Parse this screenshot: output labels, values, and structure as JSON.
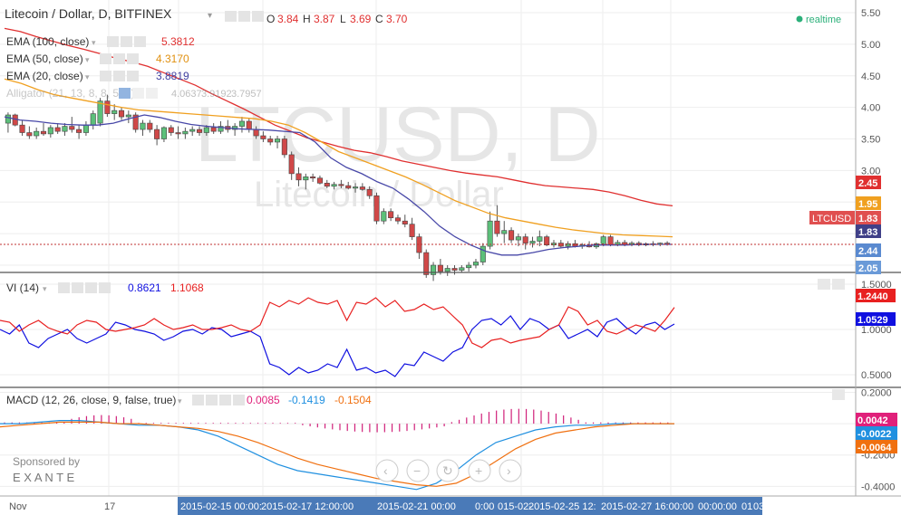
{
  "header": {
    "symbol_title": "Litecoin / Dollar, D, BITFINEX",
    "ohlc": {
      "o_label": "O",
      "o": "3.84",
      "h_label": "H",
      "h": "3.87",
      "l_label": "L",
      "l": "3.69",
      "c_label": "C",
      "c": "3.70"
    },
    "realtime_label": "realtime"
  },
  "watermark": {
    "line1": "LTCUSD, D",
    "line2": "Litecoin / Dollar"
  },
  "indicators": [
    {
      "label": "EMA (100, close)",
      "value": "5.3812",
      "color": "#e03030"
    },
    {
      "label": "EMA (50, close)",
      "value": "4.3170",
      "color": "#f0a020"
    },
    {
      "label": "EMA (20, close)",
      "value": "3.8819",
      "color": "#4040a0"
    },
    {
      "label": "Alligator (21, 13, 8, 8, 5, 3)",
      "values": [
        "4.0637",
        "3.9192",
        "3.7957"
      ],
      "color": "#9aa6b8"
    }
  ],
  "price_axis": {
    "ticks": [
      "5.50",
      "5.00",
      "4.50",
      "4.00",
      "3.50",
      "3.00",
      "2.50",
      "2.00",
      "1.50"
    ],
    "tags": [
      {
        "text": "2.45",
        "color": "#e03030"
      },
      {
        "text": "1.95",
        "color": "#f0a020"
      },
      {
        "text": "1.83",
        "color": "#e05050"
      },
      {
        "text": "1.83",
        "color": "#404088"
      },
      {
        "text": "2.44",
        "color": "#5a8ad0"
      },
      {
        "text": "2.05",
        "color": "#6a9ad8"
      }
    ],
    "symbol_tag": "LTCUSD"
  },
  "vi_panel": {
    "label": "VI (14)",
    "plus": "0.8621",
    "minus": "1.1068",
    "ticks": [
      "1.5000",
      "1.0000",
      "0.5000"
    ],
    "tags": [
      {
        "text": "1.2440",
        "color": "#e82020"
      },
      {
        "text": "1.0529",
        "color": "#1010e0"
      }
    ]
  },
  "macd_panel": {
    "label": "MACD (12, 26, close, 9, false, true)",
    "hist": "0.0085",
    "macd": "-0.1419",
    "signal": "-0.1504",
    "ticks": [
      "0.2000",
      "0.0000",
      "-0.2000",
      "-0.4000"
    ],
    "tags": [
      {
        "text": "0.0042",
        "color": "#e0207a"
      },
      {
        "text": "-0.0022",
        "color": "#2090e0"
      },
      {
        "text": "-0.0064",
        "color": "#f07010"
      }
    ]
  },
  "time_axis": {
    "labels": [
      "Nov",
      "17",
      "2015-02-15 00:00:",
      "2015-02-17 12:00:00",
      "2015-02-21 00:00",
      "0:00",
      "015-02-",
      "2015-02-25 12:",
      "2015-02-27 16:00:00",
      "00:00:00",
      "01",
      "03"
    ],
    "highlight_color": "#4a7ab8"
  },
  "sponsor": {
    "line1": "Sponsored by",
    "line2": "E X A N T E"
  },
  "nav_buttons": [
    "‹",
    "−",
    "↻",
    "+",
    "›"
  ],
  "chart_data": [
    {
      "type": "candlestick",
      "title": "Litecoin / Dollar, D, BITFINEX",
      "ylim": [
        1.5,
        5.5
      ],
      "candles": [
        [
          3.75,
          3.92,
          3.6,
          3.88
        ],
        [
          3.88,
          3.9,
          3.7,
          3.72
        ],
        [
          3.72,
          3.8,
          3.55,
          3.6
        ],
        [
          3.6,
          3.7,
          3.5,
          3.55
        ],
        [
          3.55,
          3.68,
          3.5,
          3.62
        ],
        [
          3.62,
          3.75,
          3.55,
          3.58
        ],
        [
          3.58,
          3.72,
          3.52,
          3.68
        ],
        [
          3.68,
          3.75,
          3.58,
          3.62
        ],
        [
          3.62,
          3.75,
          3.55,
          3.7
        ],
        [
          3.7,
          3.85,
          3.6,
          3.65
        ],
        [
          3.65,
          3.72,
          3.5,
          3.6
        ],
        [
          3.6,
          3.78,
          3.55,
          3.72
        ],
        [
          3.72,
          3.95,
          3.65,
          3.9
        ],
        [
          3.75,
          4.15,
          3.7,
          4.1
        ],
        [
          4.1,
          4.2,
          3.85,
          3.9
        ],
        [
          3.9,
          4.05,
          3.8,
          3.95
        ],
        [
          3.95,
          4.0,
          3.8,
          3.85
        ],
        [
          3.85,
          3.95,
          3.75,
          3.88
        ],
        [
          3.88,
          3.92,
          3.6,
          3.65
        ],
        [
          3.65,
          3.8,
          3.55,
          3.75
        ],
        [
          3.75,
          3.8,
          3.6,
          3.65
        ],
        [
          3.65,
          3.72,
          3.4,
          3.5
        ],
        [
          3.5,
          3.7,
          3.45,
          3.68
        ],
        [
          3.68,
          3.72,
          3.55,
          3.6
        ],
        [
          3.6,
          3.7,
          3.5,
          3.58
        ],
        [
          3.58,
          3.68,
          3.5,
          3.62
        ],
        [
          3.62,
          3.7,
          3.55,
          3.65
        ],
        [
          3.65,
          3.7,
          3.55,
          3.6
        ],
        [
          3.6,
          3.72,
          3.55,
          3.68
        ],
        [
          3.68,
          3.75,
          3.58,
          3.62
        ],
        [
          3.62,
          3.78,
          3.58,
          3.7
        ],
        [
          3.7,
          3.8,
          3.6,
          3.65
        ],
        [
          3.65,
          3.75,
          3.55,
          3.7
        ],
        [
          3.7,
          3.85,
          3.6,
          3.78
        ],
        [
          3.78,
          3.82,
          3.6,
          3.65
        ],
        [
          3.65,
          3.7,
          3.5,
          3.55
        ],
        [
          3.55,
          3.62,
          3.45,
          3.5
        ],
        [
          3.5,
          3.55,
          3.4,
          3.45
        ],
        [
          3.45,
          3.55,
          3.35,
          3.5
        ],
        [
          3.5,
          3.55,
          3.2,
          3.25
        ],
        [
          3.25,
          3.3,
          2.85,
          2.95
        ],
        [
          2.95,
          3.05,
          2.75,
          2.85
        ],
        [
          2.85,
          2.95,
          2.7,
          2.9
        ],
        [
          2.9,
          2.95,
          2.82,
          2.88
        ],
        [
          2.88,
          2.92,
          2.78,
          2.8
        ],
        [
          2.8,
          2.85,
          2.72,
          2.75
        ],
        [
          2.75,
          2.82,
          2.7,
          2.78
        ],
        [
          2.78,
          2.85,
          2.72,
          2.76
        ],
        [
          2.76,
          2.82,
          2.7,
          2.72
        ],
        [
          2.72,
          2.8,
          2.65,
          2.74
        ],
        [
          2.74,
          2.8,
          2.68,
          2.7
        ],
        [
          2.7,
          2.75,
          2.55,
          2.6
        ],
        [
          2.6,
          2.65,
          2.15,
          2.2
        ],
        [
          2.2,
          2.4,
          2.15,
          2.35
        ],
        [
          2.35,
          2.4,
          2.2,
          2.25
        ],
        [
          2.25,
          2.3,
          2.15,
          2.2
        ],
        [
          2.2,
          2.3,
          2.1,
          2.15
        ],
        [
          2.15,
          2.25,
          1.9,
          1.95
        ],
        [
          1.95,
          2.0,
          1.6,
          1.7
        ],
        [
          1.7,
          1.75,
          1.3,
          1.35
        ],
        [
          1.35,
          1.55,
          1.25,
          1.5
        ],
        [
          1.5,
          1.6,
          1.35,
          1.4
        ],
        [
          1.4,
          1.5,
          1.33,
          1.45
        ],
        [
          1.45,
          1.5,
          1.35,
          1.42
        ],
        [
          1.42,
          1.5,
          1.38,
          1.46
        ],
        [
          1.46,
          1.55,
          1.4,
          1.5
        ],
        [
          1.5,
          1.6,
          1.45,
          1.55
        ],
        [
          1.55,
          1.85,
          1.5,
          1.8
        ],
        [
          1.8,
          2.35,
          1.75,
          2.2
        ],
        [
          2.2,
          2.45,
          1.95,
          2.0
        ],
        [
          2.0,
          2.2,
          1.85,
          2.05
        ],
        [
          2.05,
          2.1,
          1.85,
          1.9
        ],
        [
          1.9,
          2.0,
          1.8,
          1.95
        ],
        [
          1.95,
          2.0,
          1.75,
          1.85
        ],
        [
          1.85,
          1.95,
          1.78,
          1.88
        ],
        [
          1.88,
          2.05,
          1.8,
          1.95
        ],
        [
          1.95,
          1.98,
          1.8,
          1.82
        ],
        [
          1.82,
          1.9,
          1.78,
          1.85
        ],
        [
          1.85,
          1.9,
          1.78,
          1.8
        ],
        [
          1.8,
          1.88,
          1.75,
          1.84
        ],
        [
          1.84,
          1.9,
          1.78,
          1.8
        ],
        [
          1.8,
          1.85,
          1.76,
          1.82
        ],
        [
          1.82,
          1.88,
          1.78,
          1.79
        ],
        [
          1.79,
          1.86,
          1.76,
          1.84
        ],
        [
          1.84,
          1.98,
          1.8,
          1.95
        ],
        [
          1.95,
          1.98,
          1.8,
          1.82
        ],
        [
          1.82,
          1.9,
          1.8,
          1.86
        ],
        [
          1.86,
          1.9,
          1.8,
          1.82
        ],
        [
          1.82,
          1.88,
          1.8,
          1.85
        ],
        [
          1.85,
          1.88,
          1.8,
          1.82
        ],
        [
          1.82,
          1.86,
          1.8,
          1.84
        ],
        [
          1.84,
          1.88,
          1.8,
          1.83
        ],
        [
          1.83,
          1.86,
          1.8,
          1.85
        ],
        [
          1.85,
          1.88,
          1.81,
          1.83
        ]
      ],
      "ema100": [
        5.25,
        5.2,
        5.12,
        5.05,
        4.98,
        4.92,
        4.85,
        4.78,
        4.72,
        4.65,
        4.55,
        4.45,
        4.35,
        4.22,
        4.1,
        3.98,
        3.85,
        3.72,
        3.62,
        3.52,
        3.45,
        3.38,
        3.32,
        3.28,
        3.22,
        3.15,
        3.1,
        3.05,
        3.0,
        2.96,
        2.93,
        2.9,
        2.85,
        2.8,
        2.76,
        2.74,
        2.72,
        2.7,
        2.66,
        2.6,
        2.53,
        2.47,
        2.44
      ],
      "ema50": [
        4.45,
        4.38,
        4.28,
        4.2,
        4.15,
        4.1,
        4.05,
        4.0,
        3.96,
        3.94,
        3.92,
        3.9,
        3.88,
        3.86,
        3.84,
        3.82,
        3.78,
        3.72,
        3.6,
        3.45,
        3.3,
        3.2,
        3.1,
        3.0,
        2.9,
        2.78,
        2.65,
        2.52,
        2.42,
        2.32,
        2.25,
        2.2,
        2.15,
        2.1,
        2.06,
        2.03,
        2.0,
        1.98,
        1.97,
        1.96,
        1.95
      ],
      "ema20": [
        3.85,
        3.8,
        3.78,
        3.75,
        3.73,
        3.72,
        3.72,
        3.75,
        3.82,
        3.88,
        3.84,
        3.78,
        3.73,
        3.7,
        3.68,
        3.66,
        3.65,
        3.64,
        3.62,
        3.6,
        3.45,
        3.2,
        3.05,
        2.95,
        2.82,
        2.72,
        2.55,
        2.35,
        2.12,
        1.95,
        1.82,
        1.72,
        1.66,
        1.66,
        1.7,
        1.75,
        1.78,
        1.8,
        1.82,
        1.82,
        1.82,
        1.83,
        1.83,
        1.83
      ],
      "vi_plus": [
        1.0,
        0.95,
        1.05,
        0.85,
        0.8,
        0.9,
        0.95,
        1.0,
        0.9,
        0.85,
        0.9,
        0.95,
        1.08,
        1.05,
        1.0,
        0.98,
        0.95,
        0.88,
        0.92,
        0.98,
        1.0,
        0.95,
        1.02,
        1.0,
        0.92,
        0.95,
        0.98,
        0.92,
        0.62,
        0.58,
        0.5,
        0.58,
        0.52,
        0.55,
        0.62,
        0.58,
        0.78,
        0.55,
        0.58,
        0.52,
        0.55,
        0.48,
        0.62,
        0.6,
        0.75,
        0.7,
        0.65,
        0.75,
        0.8,
        1.0,
        1.1,
        1.12,
        1.05,
        1.15,
        1.0,
        1.12,
        1.08,
        1.0,
        1.05,
        0.9,
        0.95,
        1.0,
        0.92,
        1.08,
        1.12,
        1.02,
        0.95,
        1.05,
        1.08,
        1.0,
        1.06
      ],
      "vi_minus": [
        1.1,
        1.08,
        0.98,
        1.05,
        1.1,
        1.02,
        0.98,
        0.95,
        1.05,
        1.1,
        1.08,
        1.0,
        0.98,
        1.0,
        1.02,
        1.05,
        1.12,
        1.05,
        1.0,
        1.02,
        1.05,
        1.0,
        1.0,
        1.02,
        1.05,
        1.0,
        0.98,
        1.05,
        1.3,
        1.25,
        1.32,
        1.28,
        1.35,
        1.3,
        1.28,
        1.32,
        1.1,
        1.3,
        1.28,
        1.35,
        1.25,
        1.32,
        1.2,
        1.22,
        1.28,
        1.22,
        1.25,
        1.15,
        1.05,
        0.85,
        0.8,
        0.88,
        0.9,
        0.85,
        0.88,
        0.9,
        0.92,
        1.0,
        1.05,
        1.25,
        1.2,
        1.05,
        1.1,
        0.98,
        0.95,
        1.0,
        1.05,
        1.02,
        0.98,
        1.1,
        1.244
      ]
    }
  ]
}
